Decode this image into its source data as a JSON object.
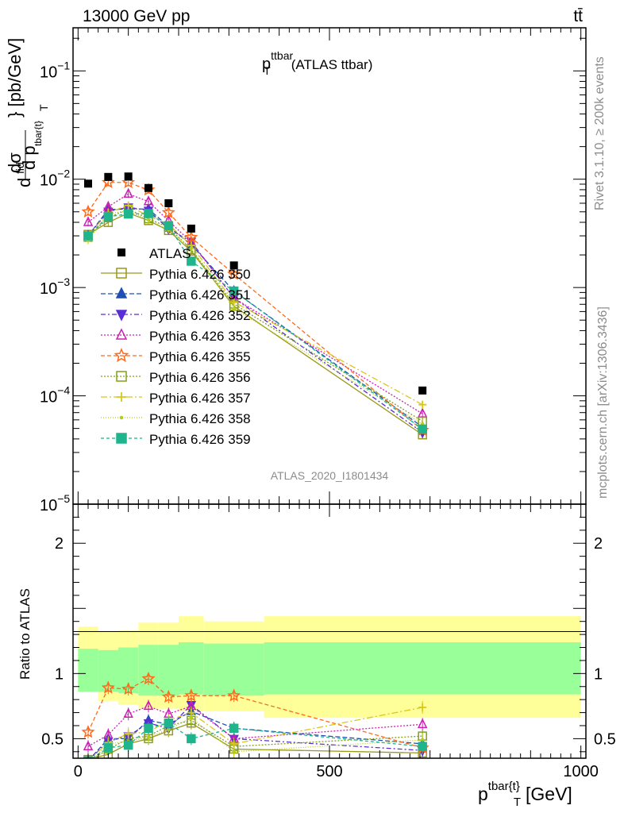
{
  "header": {
    "left": "13000 GeV pp",
    "right": "tt̄"
  },
  "side_labels": {
    "rivet": "Rivet 3.1.10, ≥ 200k events",
    "mcplots": "mcplots.cern.ch [arXiv:1306.3436]"
  },
  "colors": {
    "band_yellow": "#ffff99",
    "band_green": "#99ff99",
    "data": "#000000"
  },
  "chart_data": {
    "type": "scatter",
    "title": "p_T^ttbar (ATLAS ttbar)",
    "title_main": "p",
    "title_sup": "ttbar",
    "title_sub": "T",
    "title_rest": "(ATLAS ttbar)",
    "analysis_id": "ATLAS_2020_I1801434",
    "xlabel": "p^{tbar{t}}_T [GeV]",
    "xlabel_main": "p",
    "xlabel_sup": "tbar{t}",
    "xlabel_sub": "T",
    "xlabel_unit": "[GeV]",
    "ylabel": "dσ^{fid}/dp_T^{tbar{t}} [pb/GeV]",
    "ylabel_parts": {
      "d1": "d",
      "sigma": "dσ",
      "fid": "fid",
      "d2": "d p",
      "sub": "tbar{t}",
      "T": "T",
      "unit": "} [pb/GeV]"
    },
    "ratio_ylabel": "Ratio to ATLAS",
    "xlim": [
      -10,
      1010
    ],
    "ylim_main": [
      1e-05,
      0.25
    ],
    "ylim_ratio": [
      0.35,
      2.3
    ],
    "x_ticks": [
      {
        "value": 0,
        "label": "0"
      },
      {
        "value": 500,
        "label": "500"
      },
      {
        "value": 1000,
        "label": "1000"
      }
    ],
    "main_y_ticks": [
      {
        "value": 0.1,
        "base": "10",
        "exp": "−1"
      },
      {
        "value": 0.01,
        "base": "10",
        "exp": "−2"
      },
      {
        "value": 0.001,
        "base": "10",
        "exp": "−3"
      },
      {
        "value": 0.0001,
        "base": "10",
        "exp": "−4"
      },
      {
        "value": 1e-05,
        "base": "10",
        "exp": "−5"
      }
    ],
    "ratio_y_ticks": [
      {
        "value": 0.5,
        "label": "0.5"
      },
      {
        "value": 1,
        "label": "1"
      },
      {
        "value": 2,
        "label": "2"
      }
    ],
    "bin_edges": [
      0,
      40,
      80,
      120,
      160,
      200,
      250,
      370,
      1000
    ],
    "x": [
      20,
      60,
      100,
      140,
      180,
      225,
      310,
      685
    ],
    "band_yellow": [
      [
        0.86,
        1.36
      ],
      [
        0.79,
        1.32
      ],
      [
        0.76,
        1.33
      ],
      [
        0.73,
        1.39
      ],
      [
        0.73,
        1.39
      ],
      [
        0.71,
        1.44
      ],
      [
        0.71,
        1.4
      ],
      [
        0.66,
        1.44
      ]
    ],
    "band_green": [
      [
        0.86,
        1.19
      ],
      [
        0.86,
        1.18
      ],
      [
        0.85,
        1.2
      ],
      [
        0.83,
        1.22
      ],
      [
        0.83,
        1.22
      ],
      [
        0.84,
        1.24
      ],
      [
        0.83,
        1.23
      ],
      [
        0.84,
        1.24
      ]
    ],
    "data": {
      "name": "ATLAS",
      "values": [
        0.0091,
        0.0105,
        0.0106,
        0.0083,
        0.006,
        0.0035,
        0.0016,
        0.000112
      ]
    },
    "series": [
      {
        "name": "Pythia 6.426 350",
        "color": "#99991a",
        "marker": "square-open",
        "dash": "",
        "ratio": [
          0.34,
          0.38,
          0.46,
          0.5,
          0.56,
          0.62,
          0.42,
          0.39
        ]
      },
      {
        "name": "Pythia 6.426 351",
        "color": "#1f4fb5",
        "marker": "triangle-up",
        "dash": "6,3",
        "ratio": [
          0.33,
          0.5,
          0.5,
          0.64,
          0.61,
          0.71,
          0.58,
          0.46
        ]
      },
      {
        "name": "Pythia 6.426 352",
        "color": "#5a2ed6",
        "marker": "triangle-down",
        "dash": "6,3,2,3",
        "ratio": [
          0.33,
          0.48,
          0.52,
          0.62,
          0.58,
          0.76,
          0.5,
          0.41
        ]
      },
      {
        "name": "Pythia 6.426 353",
        "color": "#cc1fb5",
        "marker": "triangle-up-open",
        "dash": "2,2",
        "ratio": [
          0.44,
          0.53,
          0.69,
          0.75,
          0.69,
          0.75,
          0.5,
          0.61
        ]
      },
      {
        "name": "Pythia 6.426 355",
        "color": "#ff6a1a",
        "marker": "star-open",
        "dash": "5,3",
        "ratio": [
          0.55,
          0.89,
          0.88,
          0.96,
          0.82,
          0.83,
          0.83,
          0.43
        ]
      },
      {
        "name": "Pythia 6.426 356",
        "color": "#80a01a",
        "marker": "square-open",
        "dash": "2,2",
        "ratio": [
          0.32,
          0.42,
          0.5,
          0.52,
          0.6,
          0.64,
          0.44,
          0.52
        ]
      },
      {
        "name": "Pythia 6.426 357",
        "color": "#d8c81a",
        "marker": "plus",
        "dash": "8,3,2,3",
        "ratio": [
          0.33,
          0.47,
          0.54,
          0.55,
          0.64,
          0.7,
          0.46,
          0.74
        ]
      },
      {
        "name": "Pythia 6.426 358",
        "color": "#b5cc1a",
        "marker": "dot",
        "dash": "1,2",
        "ratio": [
          0.3,
          0.46,
          0.48,
          0.51,
          0.57,
          0.66,
          0.4,
          0.49
        ]
      },
      {
        "name": "Pythia 6.426 359",
        "color": "#1fb58c",
        "marker": "square",
        "dash": "4,3",
        "ratio": [
          0.33,
          0.43,
          0.45,
          0.58,
          0.62,
          0.5,
          0.58,
          0.44
        ]
      }
    ]
  }
}
